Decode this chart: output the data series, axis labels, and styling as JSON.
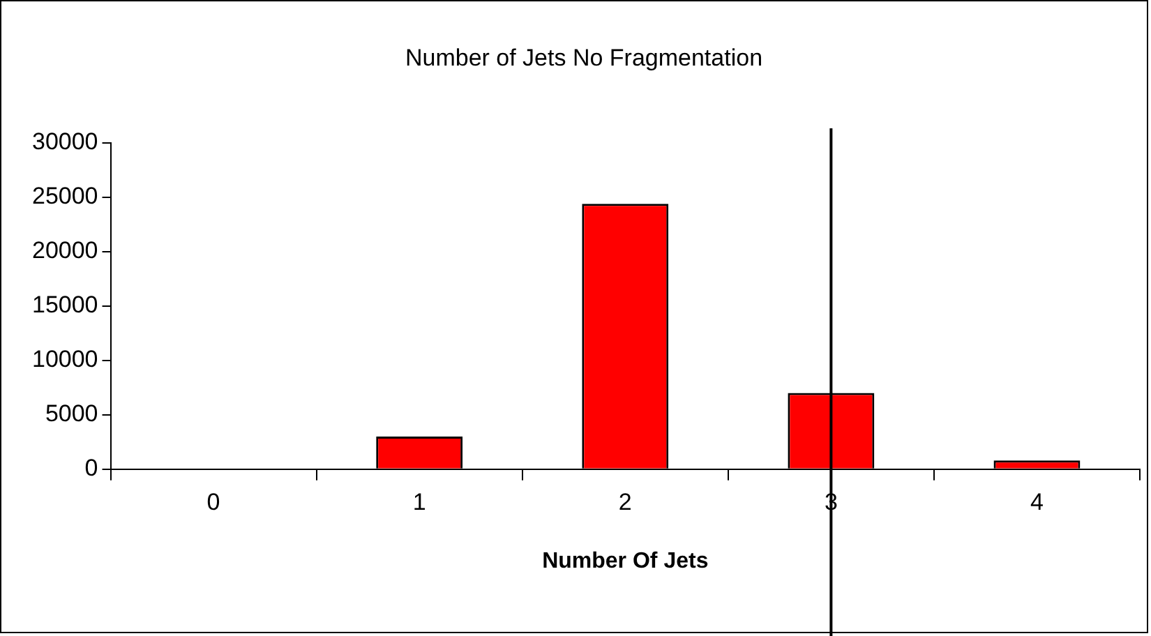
{
  "chart_data": {
    "type": "bar",
    "title": "Number of Jets No Fragmentation",
    "xlabel": "Number Of Jets",
    "categories": [
      "0",
      "1",
      "2",
      "3",
      "4"
    ],
    "values": [
      0,
      3000,
      24400,
      7000,
      800
    ],
    "color": "#ff0000",
    "ylim": [
      0,
      30000
    ],
    "yticks": [
      0,
      5000,
      10000,
      15000,
      20000,
      25000,
      30000
    ],
    "ref_lines": [
      {
        "axis": "x",
        "value": "3",
        "color": "#000000"
      }
    ],
    "grid": false,
    "legend": false
  }
}
